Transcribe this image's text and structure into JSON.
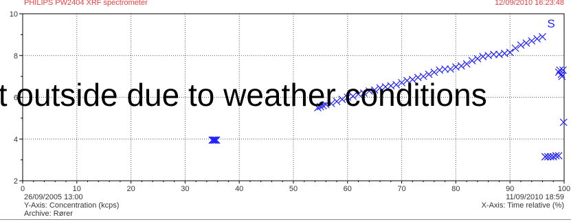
{
  "header": {
    "instrument": "PHILIPS PW2404 XRF spectrometer",
    "timestamp": "12/09/2010 16:23:48"
  },
  "footer": {
    "start_date": "26/09/2005 13:00",
    "end_date": "11/09/2010 18:59",
    "y_axis_label": "Y-Axis: Concentration (kcps)",
    "x_axis_label": "X-Axis: Time relative (%)",
    "archive": "Archive: Rører"
  },
  "overlay_caption": "alt outside due to weather conditions",
  "chart_data": {
    "type": "scatter",
    "title": "",
    "xlabel": "X-Axis: Time relative (%)",
    "ylabel": "Y-Axis: Concentration (kcps)",
    "xlim": [
      0,
      100
    ],
    "ylim": [
      2,
      10
    ],
    "x_ticks": [
      "0",
      "10",
      "20",
      "30",
      "40",
      "50",
      "60",
      "70",
      "80",
      "90",
      "100"
    ],
    "y_ticks": [
      "2",
      "4",
      "6",
      "8",
      "10"
    ],
    "grid": true,
    "element_label": "S",
    "colors": {
      "points": "#1f1fff",
      "header": "#ee3b3b",
      "grid": "#555555"
    },
    "series": [
      {
        "marker": "x",
        "x": [
          35.0,
          35.2,
          35.4,
          35.6,
          35.8,
          54.5,
          55.0,
          55.5,
          56.0,
          57.0,
          58.0,
          59.0,
          60.0,
          61.0,
          62.0,
          63.0,
          64.0,
          65.0,
          66.0,
          67.0,
          68.0,
          69.0,
          70.0,
          71.0,
          72.0,
          73.0,
          74.0,
          75.0,
          76.0,
          77.0,
          78.0,
          79.0,
          80.0,
          81.0,
          82.0,
          83.0,
          84.0,
          85.0,
          86.0,
          87.0,
          88.0,
          89.0,
          90.0,
          91.0,
          92.0,
          93.0,
          94.0,
          95.0,
          96.0,
          96.5,
          96.5,
          97.0,
          97.5,
          98.0,
          98.5,
          99.0,
          99.0,
          99.2,
          99.5,
          99.6,
          99.8,
          99.9
        ],
        "y": [
          3.95,
          3.95,
          3.95,
          3.95,
          3.95,
          5.5,
          5.55,
          5.6,
          5.65,
          5.7,
          5.8,
          5.9,
          6.0,
          6.05,
          6.15,
          6.2,
          6.3,
          6.35,
          6.45,
          6.5,
          6.55,
          6.6,
          6.7,
          6.8,
          6.85,
          6.95,
          7.0,
          7.1,
          7.2,
          7.3,
          7.35,
          7.35,
          7.45,
          7.5,
          7.6,
          7.75,
          7.85,
          7.95,
          8.0,
          8.05,
          8.05,
          8.1,
          8.15,
          8.35,
          8.5,
          8.6,
          8.7,
          8.8,
          8.9,
          3.15,
          3.15,
          3.15,
          3.15,
          3.15,
          3.2,
          3.2,
          7.2,
          7.3,
          7.1,
          7.0,
          7.3,
          4.8
        ]
      }
    ]
  }
}
